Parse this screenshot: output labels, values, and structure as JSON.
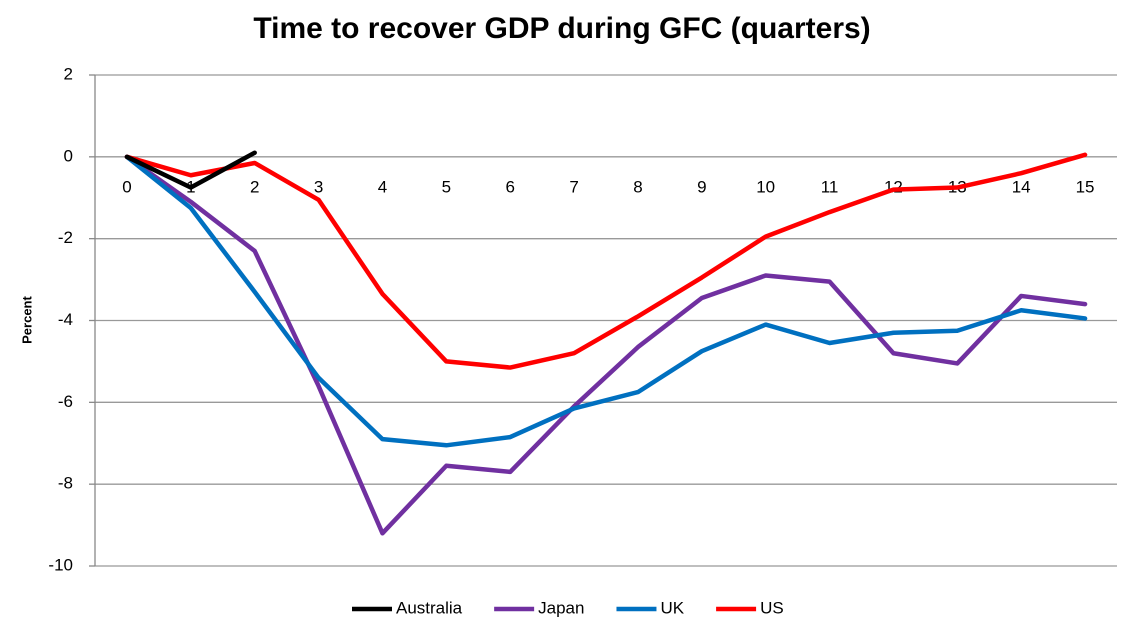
{
  "chart_data": {
    "type": "line",
    "title": "Time to recover GDP during GFC (quarters)",
    "y_label": "Percent",
    "categories": [
      "0",
      "1",
      "2",
      "3",
      "4",
      "5",
      "6",
      "7",
      "8",
      "9",
      "10",
      "11",
      "12",
      "13",
      "14",
      "15"
    ],
    "series": [
      {
        "name": "Australia",
        "color": "#000000",
        "values": [
          0,
          -0.75,
          0.1,
          null,
          null,
          null,
          null,
          null,
          null,
          null,
          null,
          null,
          null,
          null,
          null,
          null
        ]
      },
      {
        "name": "Japan",
        "color": "#7030a0",
        "values": [
          0,
          -1.1,
          -2.3,
          -5.6,
          -9.2,
          -7.55,
          -7.7,
          -6.1,
          -4.65,
          -3.45,
          -2.9,
          -3.05,
          -4.8,
          -5.05,
          -3.4,
          -3.6
        ]
      },
      {
        "name": "UK",
        "color": "#0070c0",
        "values": [
          0,
          -1.25,
          -3.3,
          -5.4,
          -6.9,
          -7.05,
          -6.85,
          -6.15,
          -5.75,
          -4.75,
          -4.1,
          -4.55,
          -4.3,
          -4.25,
          -3.75,
          -3.95
        ]
      },
      {
        "name": "US",
        "color": "#ff0000",
        "values": [
          0,
          -0.45,
          -0.15,
          -1.05,
          -3.35,
          -5.0,
          -5.15,
          -4.8,
          -3.9,
          -2.95,
          -1.95,
          -1.35,
          -0.8,
          -0.75,
          -0.4,
          0.05
        ]
      }
    ],
    "ylim": [
      -10,
      2
    ],
    "yticks": [
      -10,
      -8,
      -6,
      -4,
      -2,
      0,
      2
    ],
    "grid": true,
    "legend": "bottom"
  }
}
